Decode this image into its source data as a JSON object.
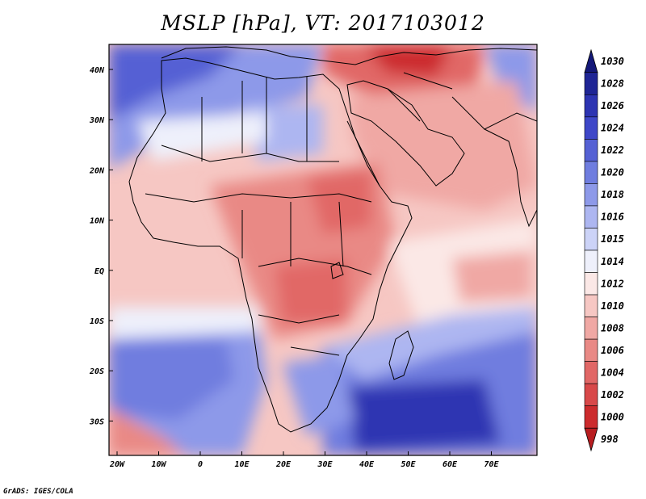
{
  "title": "MSLP [hPa], VT: 2017103012",
  "credit": "GrADS: IGES/COLA",
  "map": {
    "variable": "MSLP",
    "units": "hPa",
    "valid_time": "2017103012",
    "lon_ticks": [
      "20W",
      "10W",
      "0",
      "10E",
      "20E",
      "30E",
      "40E",
      "50E",
      "60E",
      "70E"
    ],
    "lat_ticks": [
      "40N",
      "30N",
      "20N",
      "10N",
      "EQ",
      "10S",
      "20S",
      "30S"
    ]
  },
  "colorbar": {
    "levels": [
      "1030",
      "1028",
      "1026",
      "1024",
      "1022",
      "1020",
      "1018",
      "1016",
      "1015",
      "1014",
      "1012",
      "1010",
      "1008",
      "1006",
      "1004",
      "1002",
      "1000",
      "998"
    ],
    "colors": [
      "#141878",
      "#1f2595",
      "#2d34b2",
      "#3e47c8",
      "#5561d4",
      "#6f7ddf",
      "#8d99e9",
      "#adb6f1",
      "#ccd3f7",
      "#eef0fb",
      "#fbe8e6",
      "#f6c7c3",
      "#f0a8a4",
      "#e98985",
      "#e16766",
      "#d84849",
      "#cc2b2d",
      "#b81d20"
    ],
    "ocean": "#eef0fb"
  }
}
